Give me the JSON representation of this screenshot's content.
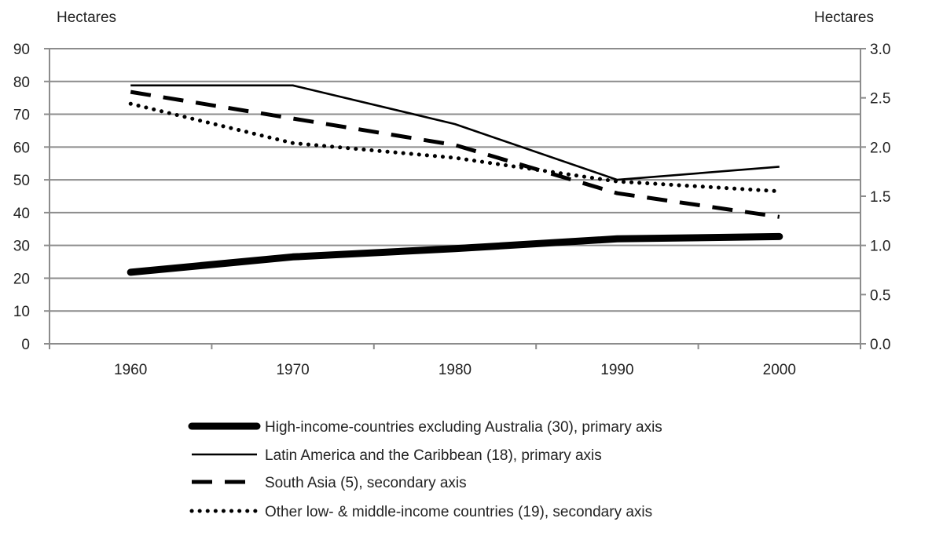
{
  "chart_data": {
    "type": "line",
    "x": [
      1960,
      1970,
      1980,
      1990,
      2000
    ],
    "categories": [
      "1960",
      "1970",
      "1980",
      "1990",
      "2000"
    ],
    "y_left": {
      "label": "Hectares",
      "ylim": [
        0,
        90
      ],
      "ticks": [
        0,
        10,
        20,
        30,
        40,
        50,
        60,
        70,
        80,
        90
      ],
      "tick_labels": [
        "0",
        "10",
        "20",
        "30",
        "40",
        "50",
        "60",
        "70",
        "80",
        "90"
      ]
    },
    "y_right": {
      "label": "Hectares",
      "ylim": [
        0,
        3
      ],
      "ticks": [
        0,
        0.5,
        1,
        1.5,
        2,
        2.5,
        3
      ],
      "tick_labels": [
        "0.0",
        "0.5",
        "1.0",
        "1.5",
        "2.0",
        "2.5",
        "3.0"
      ]
    },
    "grid": true,
    "legend_position": "bottom",
    "series": [
      {
        "name": "High-income-countries excluding Australia (30), primary axis",
        "axis": "left",
        "style": "thick-solid",
        "values": [
          21.8,
          26.5,
          29,
          32,
          32.7
        ]
      },
      {
        "name": "Latin America and the Caribbean (18), primary axis",
        "axis": "left",
        "style": "thin-solid",
        "values": [
          78.8,
          78.8,
          67,
          50,
          54
        ]
      },
      {
        "name": "South Asia (5), secondary axis",
        "axis": "right",
        "style": "dashed",
        "values": [
          2.56,
          2.29,
          2.02,
          1.53,
          1.29
        ]
      },
      {
        "name": "Other low- & middle-income countries (19), secondary axis",
        "axis": "right",
        "style": "dotted",
        "values": [
          2.44,
          2.04,
          1.89,
          1.65,
          1.55
        ]
      }
    ]
  }
}
